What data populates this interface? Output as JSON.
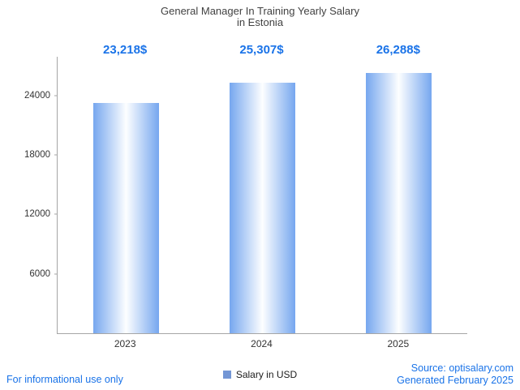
{
  "title": {
    "line1": "General Manager In Training Yearly Salary",
    "line2": "in Estonia"
  },
  "chart_data": {
    "type": "bar",
    "title": "General Manager In Training Yearly Salary in Estonia",
    "categories": [
      "2023",
      "2024",
      "2025"
    ],
    "values": [
      23218,
      25307,
      26288
    ],
    "value_labels": [
      "23,218$",
      "25,307$",
      "26,288$"
    ],
    "series_name": "Salary in USD",
    "xlabel": "",
    "ylabel": "",
    "ylim": [
      0,
      27900
    ],
    "yticks": [
      6000,
      12000,
      18000,
      24000
    ],
    "grid": false,
    "legend": "Salary in USD",
    "legend_position": "bottom",
    "bar_edge_color": "#76a7ef",
    "bar_center_color": "#fdfeff"
  },
  "footer": {
    "left": "For informational use only",
    "source": "Source: optisalary.com",
    "generated": "Generated February 2025"
  },
  "colors": {
    "accent_blue": "#1a73e8",
    "axis": "#a6a6a6",
    "title_text": "#424242",
    "tick_text": "#333333",
    "legend_square": "#7396d5"
  }
}
